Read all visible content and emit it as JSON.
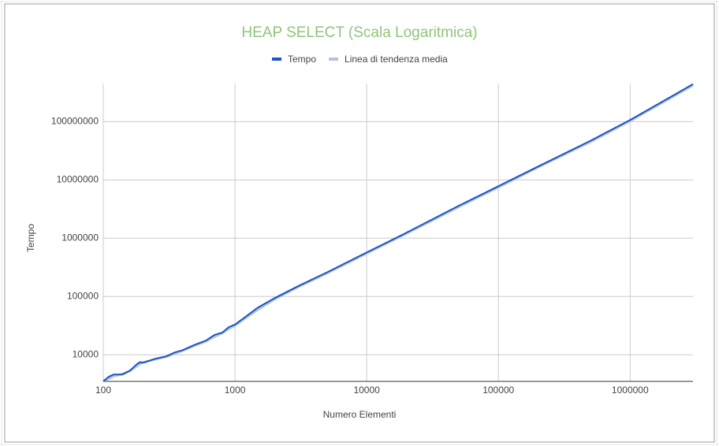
{
  "chart_data": {
    "type": "line",
    "title": "HEAP SELECT (Scala Logaritmica)",
    "x_label": "Numero Elementi",
    "y_label": "Tempo",
    "x": [
      100,
      110,
      120,
      140,
      160,
      180,
      190,
      200,
      250,
      300,
      350,
      400,
      500,
      600,
      700,
      800,
      900,
      1000,
      1500,
      2000,
      3000,
      5000,
      10000,
      20000,
      50000,
      100000,
      200000,
      500000,
      1000000,
      2000000,
      3000000
    ],
    "series": [
      {
        "name": "Tempo",
        "color": "#1a56c4",
        "values": [
          3500,
          4200,
          4600,
          4600,
          5400,
          6900,
          7500,
          7300,
          8600,
          9400,
          11000,
          12000,
          15000,
          17500,
          22000,
          24000,
          30000,
          33000,
          65000,
          94000,
          150000,
          260000,
          570000,
          1240000,
          3600000,
          7800000,
          17000000,
          47000000,
          107000000,
          260000000,
          440000000
        ]
      },
      {
        "name": "Linea di tendenza media",
        "color": "#b7c3d6",
        "values": [
          3600,
          3900,
          4300,
          4700,
          5300,
          6400,
          7000,
          7400,
          8400,
          9300,
          10500,
          11800,
          14500,
          17000,
          20500,
          23500,
          28000,
          32000,
          60000,
          90000,
          145000,
          250000,
          550000,
          1200000,
          3450000,
          7500000,
          16500000,
          45000000,
          103000000,
          250000000,
          420000000
        ]
      }
    ],
    "xlim": [
      100,
      3000000
    ],
    "xticks": [
      100,
      1000,
      10000,
      100000,
      1000000
    ],
    "ylim": [
      3500,
      450000000
    ],
    "yticks": [
      10000,
      100000,
      1000000,
      10000000,
      100000000
    ],
    "x_log": true,
    "y_log": true,
    "grid": true,
    "legend": "top"
  }
}
